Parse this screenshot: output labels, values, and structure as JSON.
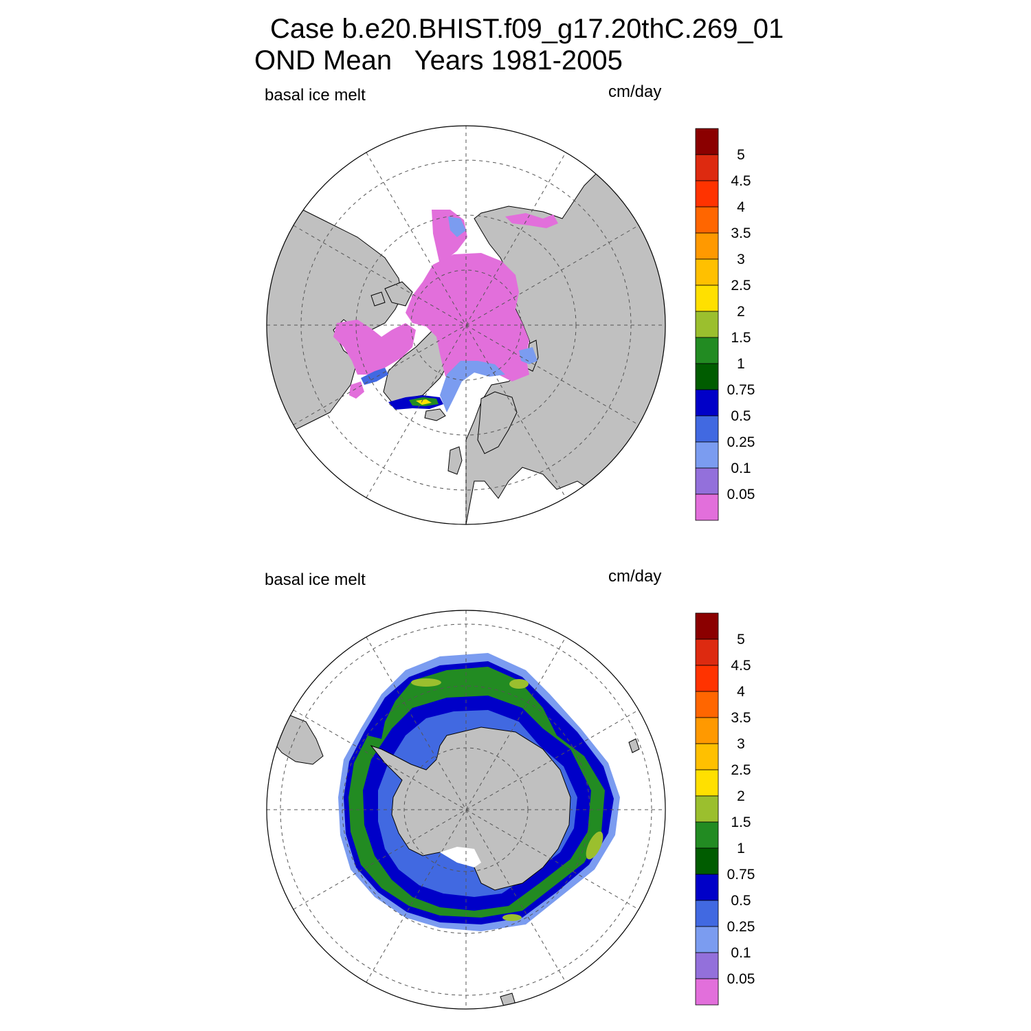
{
  "title": {
    "line1": "Case b.e20.BHIST.f09_g17.20thC.269_01",
    "line2": "OND Mean   Years 1981-2005"
  },
  "panels": [
    {
      "id": "north",
      "hemisphere": "Northern Hemisphere polar stereographic",
      "variable_label": "basal ice melt",
      "units_label": "cm/day"
    },
    {
      "id": "south",
      "hemisphere": "Southern Hemisphere polar stereographic",
      "variable_label": "basal ice melt",
      "units_label": "cm/day"
    }
  ],
  "colorbar": {
    "labels": [
      "5",
      "4.5",
      "4",
      "3.5",
      "3",
      "2.5",
      "2",
      "1.5",
      "1",
      "0.75",
      "0.5",
      "0.25",
      "0.1",
      "0.05"
    ],
    "colors": [
      "#8b0000",
      "#dd2a10",
      "#ff3300",
      "#ff6600",
      "#ff9900",
      "#ffc000",
      "#ffe000",
      "#9bbf2e",
      "#228b22",
      "#005c00",
      "#0000c8",
      "#4169e1",
      "#7b9cf0",
      "#9370db",
      "#e26fdb"
    ]
  },
  "colors": {
    "land": "#c0c0c0",
    "ocean": "#ffffff",
    "background": "#ffffff"
  }
}
